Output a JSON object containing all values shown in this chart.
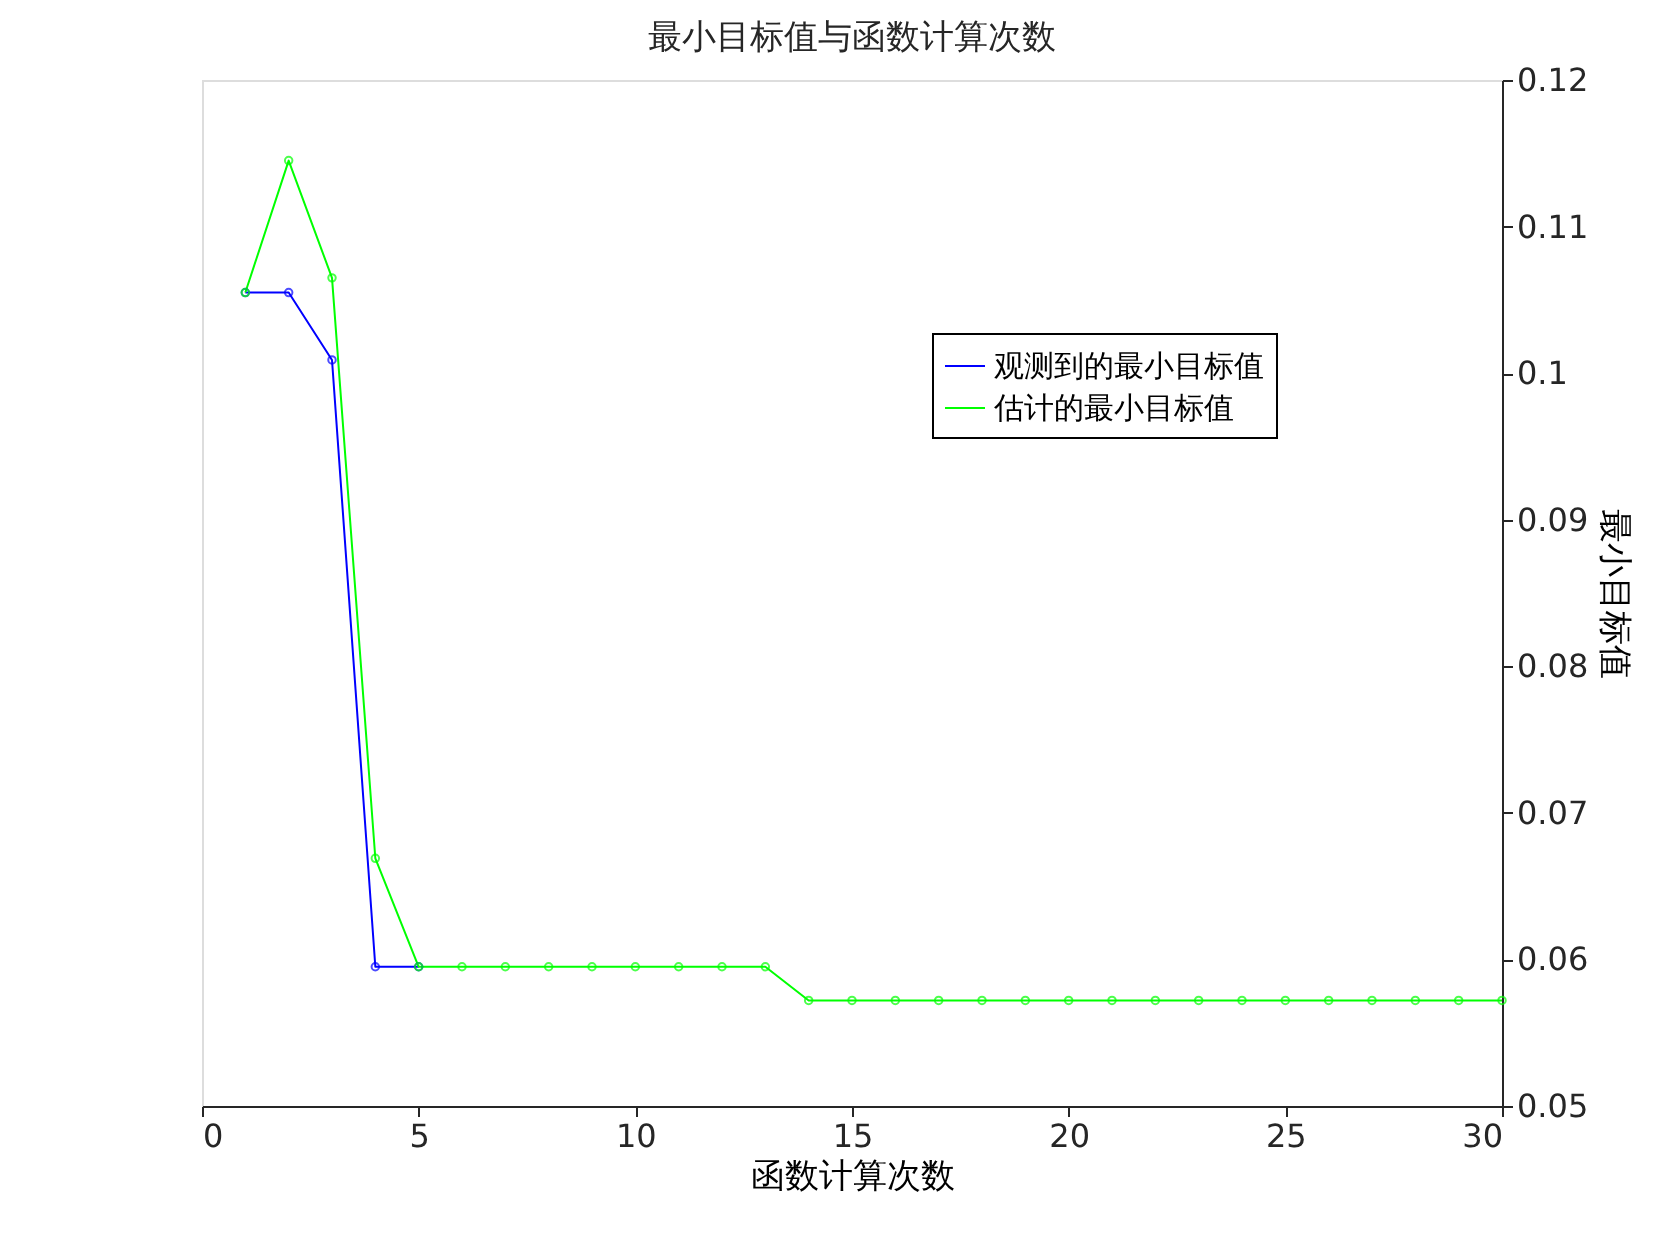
{
  "chart_data": {
    "type": "line",
    "title": "最小目标值与函数计算次数",
    "xlabel": "函数计算次数",
    "ylabel": "最小目标值",
    "x": [
      1,
      2,
      3,
      4,
      5,
      6,
      7,
      8,
      9,
      10,
      11,
      12,
      13,
      14,
      15,
      16,
      17,
      18,
      19,
      20,
      21,
      22,
      23,
      24,
      25,
      26,
      27,
      28,
      29,
      30
    ],
    "series": [
      {
        "name": "观测到的最小目标值",
        "color": "#0000ff",
        "values": [
          0.1055,
          0.1055,
          0.1009,
          0.0595,
          0.0595,
          null,
          null,
          null,
          null,
          null,
          null,
          null,
          null,
          null,
          null,
          null,
          null,
          null,
          null,
          null,
          null,
          null,
          null,
          null,
          null,
          null,
          null,
          null,
          null,
          null
        ]
      },
      {
        "name": "估计的最小目标值",
        "color": "#00ff00",
        "values": [
          0.1055,
          0.1145,
          0.1065,
          0.0669,
          0.0595,
          0.0595,
          0.0595,
          0.0595,
          0.0595,
          0.0595,
          0.0595,
          0.0595,
          0.0595,
          0.0572,
          0.0572,
          0.0572,
          0.0572,
          0.0572,
          0.0572,
          0.0572,
          0.0572,
          0.0572,
          0.0572,
          0.0572,
          0.0572,
          0.0572,
          0.0572,
          0.0572,
          0.0572,
          0.0572
        ]
      }
    ],
    "xlim": [
      0,
      30
    ],
    "xticks": [
      0,
      5,
      10,
      15,
      20,
      25,
      30
    ],
    "ylim": [
      0.05,
      0.12
    ],
    "yticks": [
      0.05,
      0.06,
      0.07,
      0.08,
      0.09,
      0.1,
      0.11,
      0.12
    ],
    "grid": false,
    "legend": "right",
    "marker": "circle",
    "line_style": "solid"
  }
}
